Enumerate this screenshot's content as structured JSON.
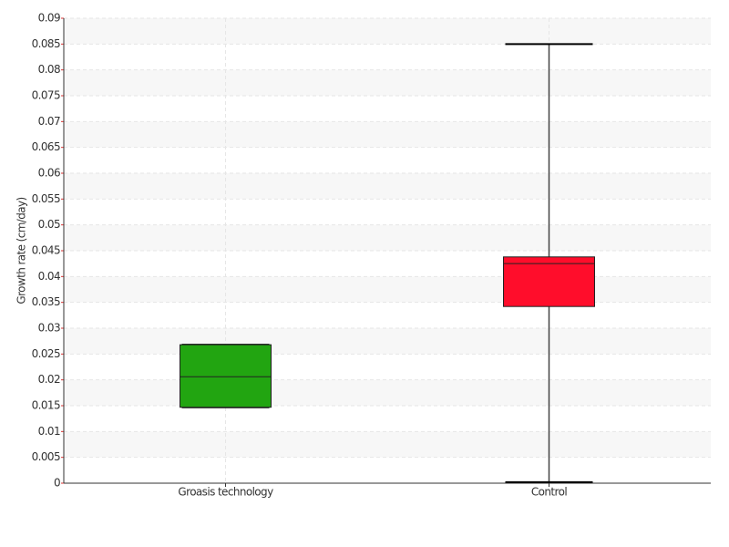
{
  "chart_data": {
    "type": "box",
    "y_label": "Growth rate (cm/day)",
    "categories": [
      "Groasis technology",
      "Control"
    ],
    "boxes": [
      {
        "min": 0.0147,
        "q1": 0.0147,
        "median": 0.0206,
        "q3": 0.0268,
        "max": 0.0268,
        "color": "#22a511"
      },
      {
        "min": 0.0002,
        "q1": 0.0342,
        "median": 0.0425,
        "q3": 0.0438,
        "max": 0.085,
        "color": "#ff0d2b"
      }
    ],
    "ylim": [
      0,
      0.09
    ],
    "yticks": [
      0,
      0.005,
      0.01,
      0.015,
      0.02,
      0.025,
      0.03,
      0.035,
      0.04,
      0.045,
      0.05,
      0.055,
      0.06,
      0.065,
      0.07,
      0.075,
      0.08,
      0.085,
      0.09
    ],
    "grid": true
  }
}
